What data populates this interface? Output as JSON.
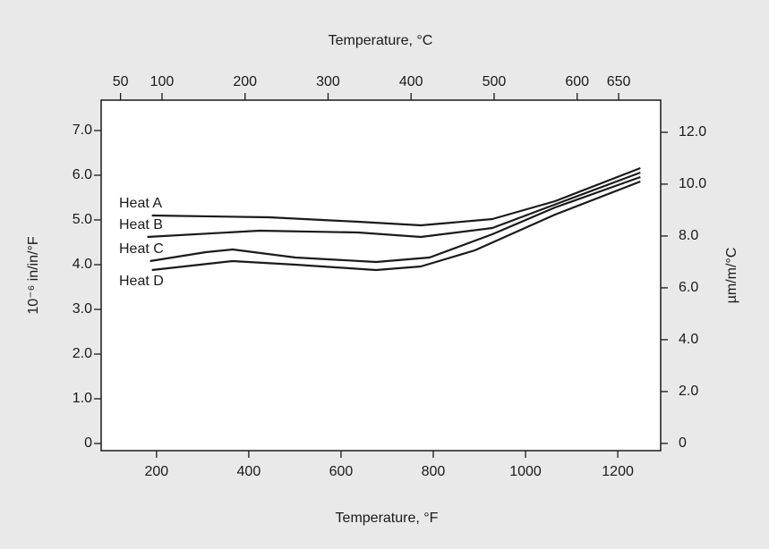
{
  "chart_data": {
    "type": "line",
    "x_label": "Temperature, °F",
    "x2_label": "Temperature, °C",
    "y_label": "10⁻⁶ in/in/°F",
    "y2_label": "µm/m/°C",
    "xlim": [
      80,
      1293
    ],
    "xticks": [
      200,
      400,
      600,
      800,
      1000,
      1200
    ],
    "x2lim": [
      26.7,
      700.6
    ],
    "x2ticks": [
      50,
      100,
      200,
      300,
      400,
      500,
      600,
      650
    ],
    "ylim": [
      -0.16,
      7.68
    ],
    "yticks": [
      0,
      {
        "value": 1,
        "label": "1.0"
      },
      {
        "value": 2,
        "label": "2.0"
      },
      {
        "value": 3,
        "label": "3.0"
      },
      {
        "value": 4,
        "label": "4.0"
      },
      {
        "value": 5,
        "label": "5.0"
      },
      {
        "value": 6,
        "label": "6.0"
      },
      {
        "value": 7,
        "label": "7.0"
      }
    ],
    "y2lim": [
      -0.28,
      13.24
    ],
    "y2ticks": [
      0,
      {
        "value": 2,
        "label": "2.0"
      },
      {
        "value": 4,
        "label": "4.0"
      },
      {
        "value": 6,
        "label": "6.0"
      },
      {
        "value": 8,
        "label": "8.0"
      },
      {
        "value": 10,
        "label": "10.0"
      },
      {
        "value": 12,
        "label": "12.0"
      }
    ],
    "grid": false,
    "series": [
      {
        "name": "Heat A",
        "color": "#1a1a1a",
        "x": [
          190,
          443,
          637,
          773,
          928,
          1064,
          1249
        ],
        "values": [
          5.1,
          5.06,
          4.96,
          4.88,
          5.02,
          5.42,
          6.16
        ]
      },
      {
        "name": "Heat B",
        "color": "#1a1a1a",
        "x": [
          180,
          423,
          637,
          773,
          928,
          1083,
          1249
        ],
        "values": [
          4.62,
          4.76,
          4.72,
          4.62,
          4.82,
          5.42,
          6.06
        ]
      },
      {
        "name": "Heat C",
        "color": "#1a1a1a",
        "x": [
          186,
          307,
          365,
          501,
          676,
          792,
          928,
          1064,
          1249
        ],
        "values": [
          4.08,
          4.28,
          4.34,
          4.16,
          4.06,
          4.16,
          4.68,
          5.28,
          5.96
        ]
      },
      {
        "name": "Heat D",
        "color": "#1a1a1a",
        "x": [
          190,
          365,
          501,
          676,
          773,
          890,
          1064,
          1249
        ],
        "values": [
          3.88,
          4.08,
          4.0,
          3.88,
          3.96,
          4.32,
          5.12,
          5.86
        ]
      }
    ]
  }
}
